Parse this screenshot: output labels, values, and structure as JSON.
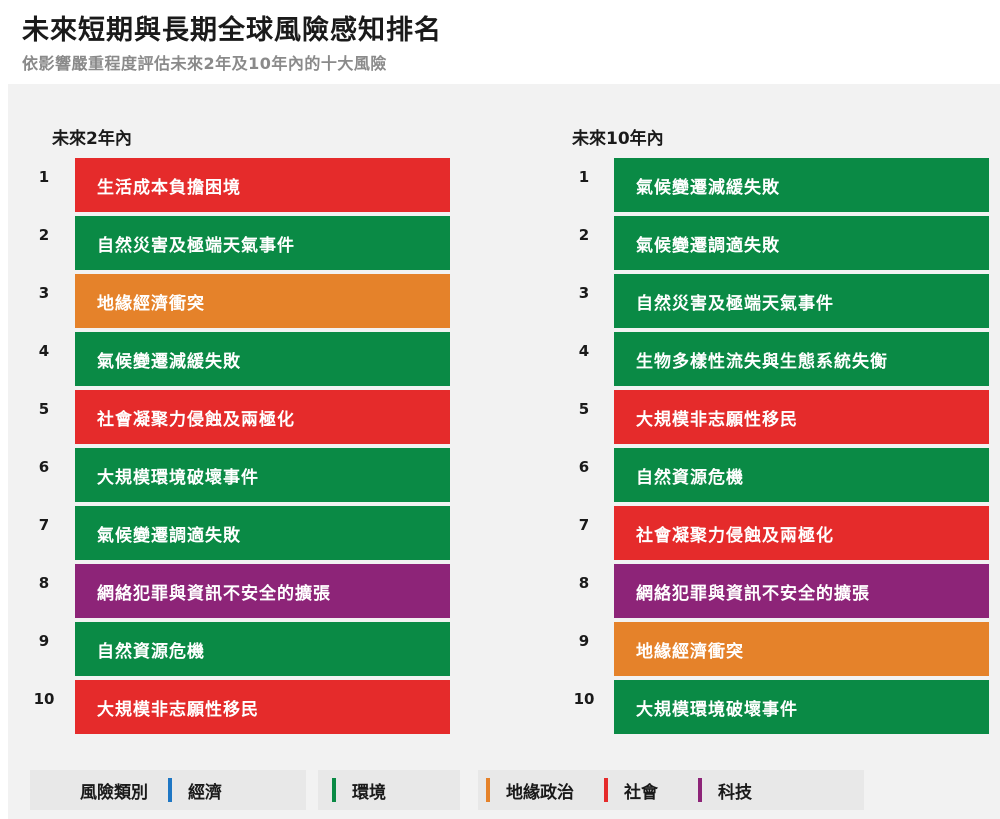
{
  "header": {
    "title": "未來短期與長期全球風險感知排名",
    "subtitle": "依影響嚴重程度評估未來2年及10年內的十大風險"
  },
  "colors": {
    "economic": "#1f77c4",
    "environmental": "#0a8a45",
    "geopolitical": "#e5822a",
    "societal": "#e52b2b",
    "technological": "#8d2478"
  },
  "short_term": {
    "heading": "未來2年內",
    "items": [
      {
        "rank": "1",
        "label": "生活成本負擔困境",
        "category": "societal"
      },
      {
        "rank": "2",
        "label": "自然災害及極端天氣事件",
        "category": "environmental"
      },
      {
        "rank": "3",
        "label": "地緣經濟衝突",
        "category": "geopolitical"
      },
      {
        "rank": "4",
        "label": "氣候變遷減緩失敗",
        "category": "environmental"
      },
      {
        "rank": "5",
        "label": "社會凝聚力侵蝕及兩極化",
        "category": "societal"
      },
      {
        "rank": "6",
        "label": "大規模環境破壞事件",
        "category": "environmental"
      },
      {
        "rank": "7",
        "label": "氣候變遷調適失敗",
        "category": "environmental"
      },
      {
        "rank": "8",
        "label": "網絡犯罪與資訊不安全的擴張",
        "category": "technological"
      },
      {
        "rank": "9",
        "label": "自然資源危機",
        "category": "environmental"
      },
      {
        "rank": "10",
        "label": "大規模非志願性移民",
        "category": "societal"
      }
    ]
  },
  "long_term": {
    "heading": "未來10年內",
    "items": [
      {
        "rank": "1",
        "label": "氣候變遷減緩失敗",
        "category": "environmental"
      },
      {
        "rank": "2",
        "label": "氣候變遷調適失敗",
        "category": "environmental"
      },
      {
        "rank": "3",
        "label": "自然災害及極端天氣事件",
        "category": "environmental"
      },
      {
        "rank": "4",
        "label": "生物多樣性流失與生態系統失衡",
        "category": "environmental"
      },
      {
        "rank": "5",
        "label": "大規模非志願性移民",
        "category": "societal"
      },
      {
        "rank": "6",
        "label": "自然資源危機",
        "category": "environmental"
      },
      {
        "rank": "7",
        "label": "社會凝聚力侵蝕及兩極化",
        "category": "societal"
      },
      {
        "rank": "8",
        "label": "網絡犯罪與資訊不安全的擴張",
        "category": "technological"
      },
      {
        "rank": "9",
        "label": "地緣經濟衝突",
        "category": "geopolitical"
      },
      {
        "rank": "10",
        "label": "大規模環境破壞事件",
        "category": "environmental"
      }
    ]
  },
  "legend": {
    "title": "風險類別",
    "items": [
      {
        "label": "經濟",
        "category": "economic"
      },
      {
        "label": "環境",
        "category": "environmental"
      },
      {
        "label": "地緣政治",
        "category": "geopolitical"
      },
      {
        "label": "社會",
        "category": "societal"
      },
      {
        "label": "科技",
        "category": "technological"
      }
    ]
  }
}
